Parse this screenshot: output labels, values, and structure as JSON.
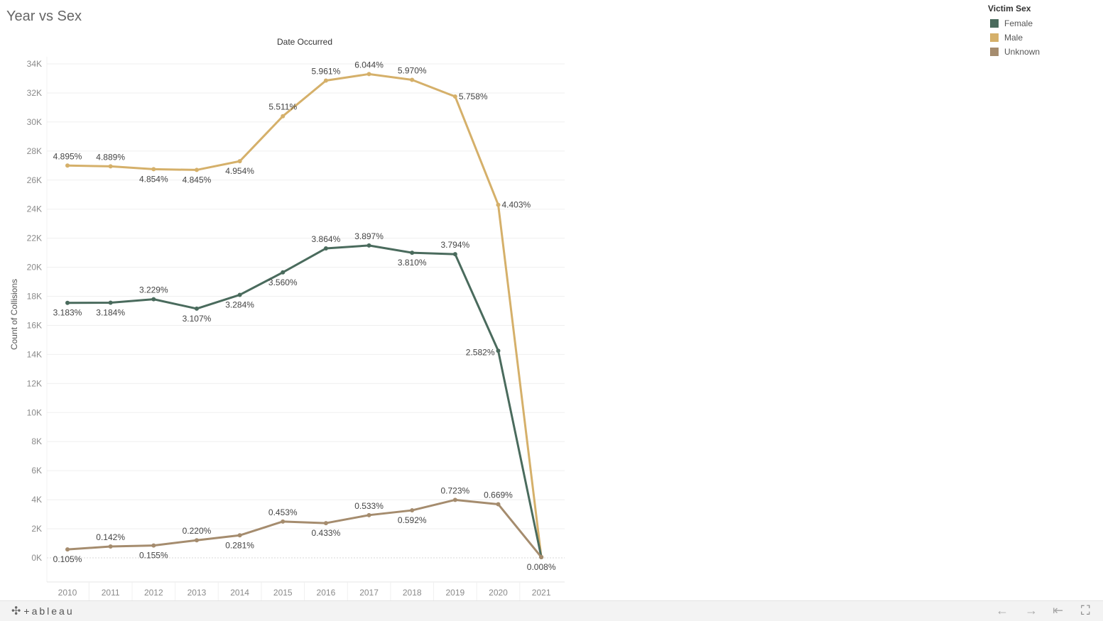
{
  "title": "Year vs Sex",
  "footer": {
    "brand": "+ableau",
    "controls": [
      {
        "name": "undo-button",
        "icon": "arrow-left-icon",
        "glyph": "←"
      },
      {
        "name": "redo-button",
        "icon": "arrow-right-icon",
        "glyph": "→"
      },
      {
        "name": "revert-button",
        "icon": "revert-icon",
        "glyph": "⇤"
      },
      {
        "name": "fullscreen-button",
        "icon": "fullscreen-icon",
        "glyph": "⛶"
      }
    ]
  },
  "legend": {
    "title": "Victim Sex",
    "items": [
      {
        "label": "Female",
        "color": "#4a6b5d"
      },
      {
        "label": "Male",
        "color": "#d5b06a"
      },
      {
        "label": "Unknown",
        "color": "#a58c6e"
      }
    ]
  },
  "chart_data": {
    "type": "line",
    "title": "Date Occurred",
    "xlabel": "",
    "ylabel": "Count of Collisions",
    "categories": [
      "2010",
      "2011",
      "2012",
      "2013",
      "2014",
      "2015",
      "2016",
      "2017",
      "2018",
      "2019",
      "2020",
      "2021"
    ],
    "ylim": [
      0,
      34000
    ],
    "yticks": [
      0,
      2000,
      4000,
      6000,
      8000,
      10000,
      12000,
      14000,
      16000,
      18000,
      20000,
      22000,
      24000,
      26000,
      28000,
      30000,
      32000,
      34000
    ],
    "ytick_labels": [
      "0K",
      "2K",
      "4K",
      "6K",
      "8K",
      "10K",
      "12K",
      "14K",
      "16K",
      "18K",
      "20K",
      "22K",
      "24K",
      "26K",
      "28K",
      "30K",
      "32K",
      "34K"
    ],
    "grid": true,
    "legend_position": "top-right",
    "series": [
      {
        "name": "Male",
        "color": "#d5b06a",
        "values": [
          27000,
          26950,
          26750,
          26700,
          27300,
          30400,
          32850,
          33300,
          32900,
          31750,
          24300,
          50
        ],
        "labels": [
          "4.895%",
          "4.889%",
          "4.854%",
          "4.845%",
          "4.954%",
          "5.511%",
          "5.961%",
          "6.044%",
          "5.970%",
          "5.758%",
          "4.403%",
          ""
        ],
        "label_pos": [
          "above",
          "above",
          "below",
          "below",
          "below",
          "above",
          "above",
          "above",
          "above",
          "right",
          "right",
          ""
        ]
      },
      {
        "name": "Female",
        "color": "#4a6b5d",
        "values": [
          17550,
          17560,
          17800,
          17150,
          18100,
          19650,
          21300,
          21500,
          21000,
          20900,
          14250,
          50
        ],
        "labels": [
          "3.183%",
          "3.184%",
          "3.229%",
          "3.107%",
          "3.284%",
          "3.560%",
          "3.864%",
          "3.897%",
          "3.810%",
          "3.794%",
          "2.582%",
          ""
        ],
        "label_pos": [
          "below",
          "below",
          "above",
          "below",
          "below",
          "below",
          "above",
          "above",
          "below",
          "above",
          "left",
          ""
        ]
      },
      {
        "name": "Unknown",
        "color": "#a58c6e",
        "values": [
          580,
          780,
          850,
          1210,
          1550,
          2500,
          2390,
          2940,
          3270,
          3990,
          3690,
          50
        ],
        "labels": [
          "0.105%",
          "0.142%",
          "0.155%",
          "0.220%",
          "0.281%",
          "0.453%",
          "0.433%",
          "0.533%",
          "0.592%",
          "0.723%",
          "0.669%",
          "0.008%"
        ],
        "label_pos": [
          "below",
          "above",
          "below",
          "above",
          "below",
          "above",
          "below",
          "above",
          "below",
          "above",
          "above",
          "below"
        ]
      }
    ]
  }
}
